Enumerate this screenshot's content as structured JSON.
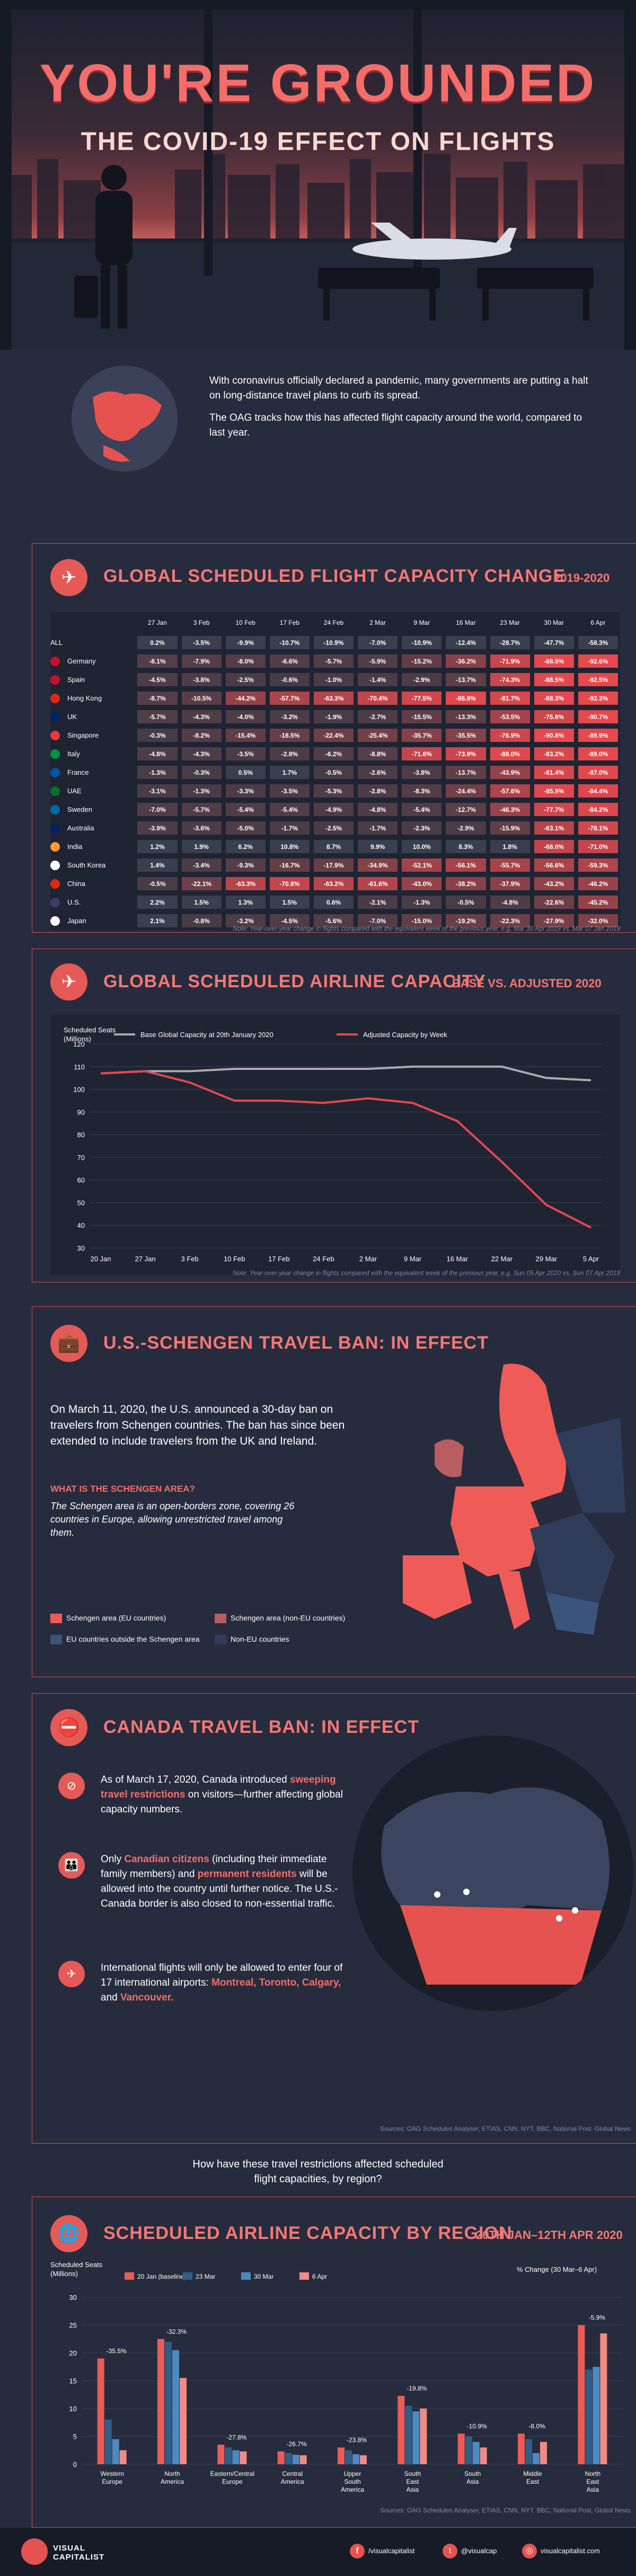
{
  "header": {
    "title": "YOU'RE GROUNDED",
    "subtitle": "THE COVID-19 EFFECT ON FLIGHTS"
  },
  "intro": {
    "p1": "With coronavirus officially declared a pandemic, many governments are putting a halt on long-distance travel plans to curb its spread.",
    "p2": "The OAG tracks how this has affected flight capacity around the world, compared to last year."
  },
  "section1": {
    "title": "GLOBAL SCHEDULED FLIGHT CAPACITY CHANGE",
    "subtitle": "2019-2020",
    "note": "Note: Year-over-year change in flights compared with the equivalent week of the previous year, e.g. Mar 30 Apr 2019 vs. Mar 07 Jan 2019",
    "columns": [
      "27 Jan",
      "3 Feb",
      "10 Feb",
      "17 Feb",
      "24 Feb",
      "2 Mar",
      "9 Mar",
      "16 Mar",
      "23 Mar",
      "30 Mar",
      "6 Apr"
    ],
    "rows": [
      {
        "name": "ALL",
        "values": [
          "0.2%",
          "-3.5%",
          "-9.9%",
          "-10.7%",
          "-10.9%",
          "-7.0%",
          "-10.9%",
          "-12.4%",
          "-28.7%",
          "-47.7%",
          "-58.3%"
        ]
      },
      {
        "name": "Germany",
        "values": [
          "-8.1%",
          "-7.9%",
          "-8.0%",
          "-6.6%",
          "-5.7%",
          "-5.9%",
          "-15.2%",
          "-36.2%",
          "-71.9%",
          "-88.9%",
          "-92.6%"
        ]
      },
      {
        "name": "Spain",
        "values": [
          "-4.5%",
          "-3.8%",
          "-2.5%",
          "-0.6%",
          "-1.0%",
          "-1.4%",
          "-2.9%",
          "-13.7%",
          "-74.3%",
          "-88.5%",
          "-92.5%"
        ]
      },
      {
        "name": "Hong Kong",
        "values": [
          "-8.7%",
          "-10.5%",
          "-44.2%",
          "-57.7%",
          "-63.3%",
          "-70.4%",
          "-77.5%",
          "-86.8%",
          "-81.7%",
          "-88.3%",
          "-92.3%"
        ]
      },
      {
        "name": "UK",
        "values": [
          "-5.7%",
          "-4.3%",
          "-4.0%",
          "-3.2%",
          "-1.9%",
          "-2.7%",
          "-15.5%",
          "-13.3%",
          "-53.5%",
          "-75.6%",
          "-90.7%"
        ]
      },
      {
        "name": "Singapore",
        "values": [
          "-0.3%",
          "-8.2%",
          "-15.4%",
          "-18.5%",
          "-22.4%",
          "-25.4%",
          "-35.7%",
          "-35.5%",
          "-76.9%",
          "-90.8%",
          "-89.9%"
        ]
      },
      {
        "name": "Italy",
        "values": [
          "-4.8%",
          "-4.3%",
          "-3.5%",
          "-2.8%",
          "-6.2%",
          "-8.8%",
          "-71.6%",
          "-73.9%",
          "-88.0%",
          "-83.2%",
          "-89.0%"
        ]
      },
      {
        "name": "France",
        "values": [
          "-1.3%",
          "-0.3%",
          "0.5%",
          "1.7%",
          "-0.5%",
          "-2.6%",
          "-3.8%",
          "-13.7%",
          "-43.9%",
          "-81.4%",
          "-87.0%"
        ]
      },
      {
        "name": "UAE",
        "values": [
          "-3.1%",
          "-1.3%",
          "-3.3%",
          "-3.5%",
          "-5.3%",
          "-2.8%",
          "-8.3%",
          "-24.4%",
          "-57.6%",
          "-85.9%",
          "-84.4%"
        ]
      },
      {
        "name": "Sweden",
        "values": [
          "-7.0%",
          "-5.7%",
          "-5.4%",
          "-5.4%",
          "-4.9%",
          "-4.8%",
          "-5.4%",
          "-12.7%",
          "-46.3%",
          "-77.7%",
          "-84.2%"
        ]
      },
      {
        "name": "Australia",
        "values": [
          "-3.9%",
          "-3.6%",
          "-5.0%",
          "-1.7%",
          "-2.5%",
          "-1.7%",
          "-2.3%",
          "-2.9%",
          "-15.9%",
          "-63.1%",
          "-78.1%"
        ]
      },
      {
        "name": "India",
        "values": [
          "1.2%",
          "1.9%",
          "6.2%",
          "10.8%",
          "8.7%",
          "9.9%",
          "10.0%",
          "8.3%",
          "1.8%",
          "-68.0%",
          "-71.0%"
        ]
      },
      {
        "name": "South Korea",
        "values": [
          "1.4%",
          "-3.4%",
          "-9.3%",
          "-16.7%",
          "-17.9%",
          "-34.9%",
          "-52.1%",
          "-56.1%",
          "-55.7%",
          "-56.6%",
          "-59.3%"
        ]
      },
      {
        "name": "China",
        "values": [
          "-0.5%",
          "-22.1%",
          "-63.3%",
          "-70.8%",
          "-63.2%",
          "-61.6%",
          "-43.0%",
          "-38.2%",
          "-37.9%",
          "-43.2%",
          "-46.2%"
        ]
      },
      {
        "name": "U.S.",
        "values": [
          "2.2%",
          "1.5%",
          "1.3%",
          "1.5%",
          "0.6%",
          "-2.1%",
          "-1.3%",
          "-0.5%",
          "-4.8%",
          "-22.6%",
          "-45.2%"
        ]
      },
      {
        "name": "Japan",
        "values": [
          "2.1%",
          "-0.8%",
          "-3.2%",
          "-4.5%",
          "-5.6%",
          "-7.0%",
          "-15.0%",
          "-19.2%",
          "-22.3%",
          "-27.9%",
          "-32.0%"
        ]
      }
    ]
  },
  "section2": {
    "title": "GLOBAL SCHEDULED AIRLINE CAPACITY",
    "subtitle": "BASE VS. ADJUSTED 2020",
    "ylabel": "Scheduled Seats (Millions)",
    "legend_base": "Base Global Capacity at 20th January 2020",
    "legend_adj": "Adjusted Capacity by Week",
    "note": "Note: Year-over-year change in flights compared with the equivalent week of the previous year, e.g. Sun 05 Apr 2020 vs. Sun 07 Apr 2019"
  },
  "chart_data": [
    {
      "type": "line",
      "x": [
        "20 Jan",
        "27 Jan",
        "3 Feb",
        "10 Feb",
        "17 Feb",
        "24 Feb",
        "2 Mar",
        "9 Mar",
        "16 Mar",
        "22 Mar",
        "29 Mar",
        "5 Apr"
      ],
      "series": [
        {
          "name": "Base Global Capacity at 20th January 2020",
          "values": [
            107,
            108,
            108,
            109,
            109,
            109,
            109,
            110,
            110,
            110,
            105,
            104
          ]
        },
        {
          "name": "Adjusted Capacity by Week",
          "values": [
            107,
            108,
            103,
            95,
            95,
            94,
            96,
            94,
            86,
            68,
            49,
            39
          ]
        }
      ],
      "ylabel": "Scheduled Seats (Millions)",
      "ylim": [
        30,
        120
      ],
      "yticks": [
        30,
        40,
        50,
        60,
        70,
        80,
        90,
        100,
        110,
        120
      ],
      "colors": {
        "base": "#a9abb1",
        "adjusted": "#e5484d"
      },
      "grid": true
    },
    {
      "type": "bar",
      "categories": [
        "Western Europe",
        "North America",
        "Eastern/Central Europe",
        "Central America",
        "Upper South America",
        "South East Asia",
        "South Asia",
        "Middle East",
        "North East Asia"
      ],
      "series": [
        {
          "name": "20 Jan (baseline)",
          "values": [
            19.0,
            22.5,
            3.5,
            2.3,
            3.0,
            12.3,
            5.5,
            5.5,
            25.0
          ]
        },
        {
          "name": "23 Mar",
          "values": [
            8.0,
            22.0,
            3.0,
            2.0,
            2.5,
            10.5,
            5.0,
            4.5,
            17.0
          ]
        },
        {
          "name": "30 Mar",
          "values": [
            4.5,
            20.5,
            2.5,
            1.7,
            1.8,
            9.5,
            4.0,
            2.0,
            17.5
          ]
        },
        {
          "name": "6 Apr",
          "values": [
            2.5,
            15.5,
            2.3,
            1.6,
            1.6,
            10.0,
            3.0,
            4.0,
            23.5
          ]
        }
      ],
      "pct_change": [
        "-35.5%",
        "-32.3%",
        "-27.8%",
        "-26.7%",
        "-23.8%",
        "-19.8%",
        "-10.9%",
        "-8.0%",
        "-5.9%"
      ],
      "ylabel": "Scheduled Seats (Millions)",
      "pct_label": "% Change (30 Mar–6 Apr)",
      "ylim": [
        0,
        30
      ],
      "yticks": [
        0,
        5,
        10,
        15,
        20,
        25,
        30
      ],
      "colors": [
        "#ed5b56",
        "#2f5e8a",
        "#4c8ac0",
        "#f08a84"
      ]
    }
  ],
  "section3": {
    "title": "U.S.-SCHENGEN TRAVEL BAN: IN EFFECT",
    "body": "On March 11, 2020, the U.S. announced a 30-day ban on travelers from Schengen countries. The ban has since been extended to include travelers from the UK and Ireland.",
    "q": "WHAT IS THE SCHENGEN AREA?",
    "answer": "The Schengen area is an open-borders zone, covering 26 countries in Europe, allowing unrestricted travel among them.",
    "legend": [
      "Schengen area (EU countries)",
      "Schengen area (non-EU countries)",
      "EU countries outside the Schengen area",
      "Non-EU countries"
    ]
  },
  "section4": {
    "title": "CANADA TRAVEL BAN: IN EFFECT",
    "b1a": "As of March 17, 2020, Canada introduced ",
    "b1h": "sweeping travel restrictions",
    "b1b": " on visitors—further affecting global capacity numbers.",
    "b2a": "Only ",
    "b2h1": "Canadian citizens",
    "b2b": " (including their immediate family members) and ",
    "b2h2": "permanent residents",
    "b2c": " will be allowed into the country until further notice. The U.S.-Canada border is also closed to non-essential traffic.",
    "b3a": "International flights will only be allowed to enter four of 17 international airports: ",
    "b3h": "Montreal, Toronto, Calgary,",
    "b3b": " and ",
    "b3h2": "Vancouver.",
    "sources": "Sources: OAG Schedules Analyser, ETIAS, CNN, NYT, BBC, National Post, Global News"
  },
  "question": "How have these travel restrictions affected scheduled flight capacities, by region?",
  "section5": {
    "title": "SCHEDULED AIRLINE CAPACITY BY REGION",
    "subtitle": "20TH JAN–12TH APR 2020",
    "sources": "Sources: OAG Schedules Analyser, ETIAS, CNN, NYT, BBC, National Post, Global News"
  },
  "footer": {
    "brand": "VISUAL CAPITALIST",
    "fb": "/visualcapitalist",
    "tw": "@visualcap",
    "web": "visualcapitalist.com"
  }
}
